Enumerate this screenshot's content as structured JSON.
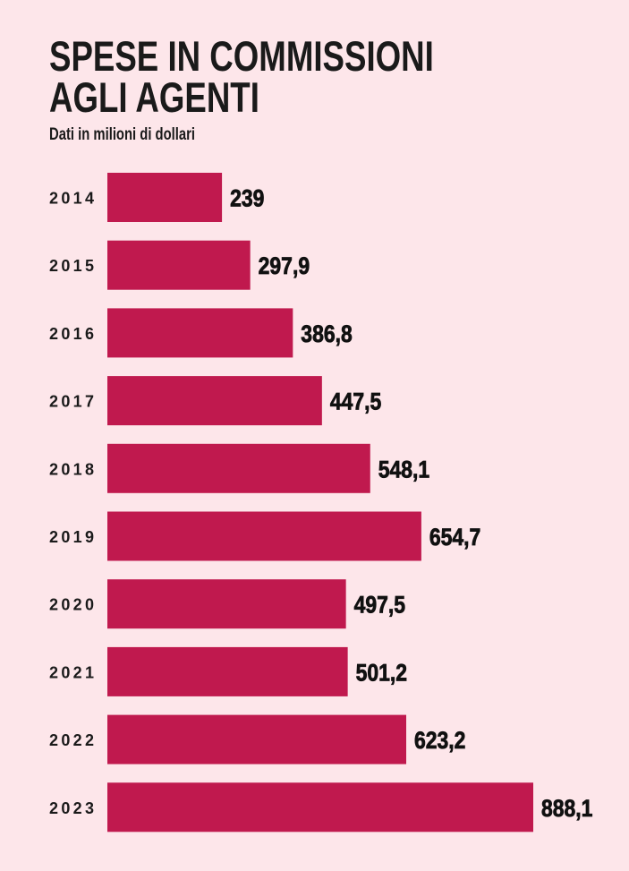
{
  "chart_data": {
    "type": "bar",
    "orientation": "horizontal",
    "title": "SPESE IN COMMISSIONI AGLI AGENTI",
    "title_lines": [
      "SPESE IN COMMISSIONI",
      "AGLI AGENTI"
    ],
    "subtitle": "Dati in milioni di dollari",
    "categories": [
      "2014",
      "2015",
      "2016",
      "2017",
      "2018",
      "2019",
      "2020",
      "2021",
      "2022",
      "2023"
    ],
    "values": [
      239,
      297.9,
      386.8,
      447.5,
      548.1,
      654.7,
      497.5,
      501.2,
      623.2,
      888.1
    ],
    "data_labels": [
      "239",
      "297,9",
      "386,8",
      "447,5",
      "548,1",
      "654,7",
      "497,5",
      "501,2",
      "623,2",
      "888,1"
    ],
    "xlim": [
      0,
      888.1
    ],
    "grid": false,
    "colors": {
      "bar": "#c0194e",
      "background": "#fde6ea",
      "text": "#1a1a1a"
    }
  }
}
